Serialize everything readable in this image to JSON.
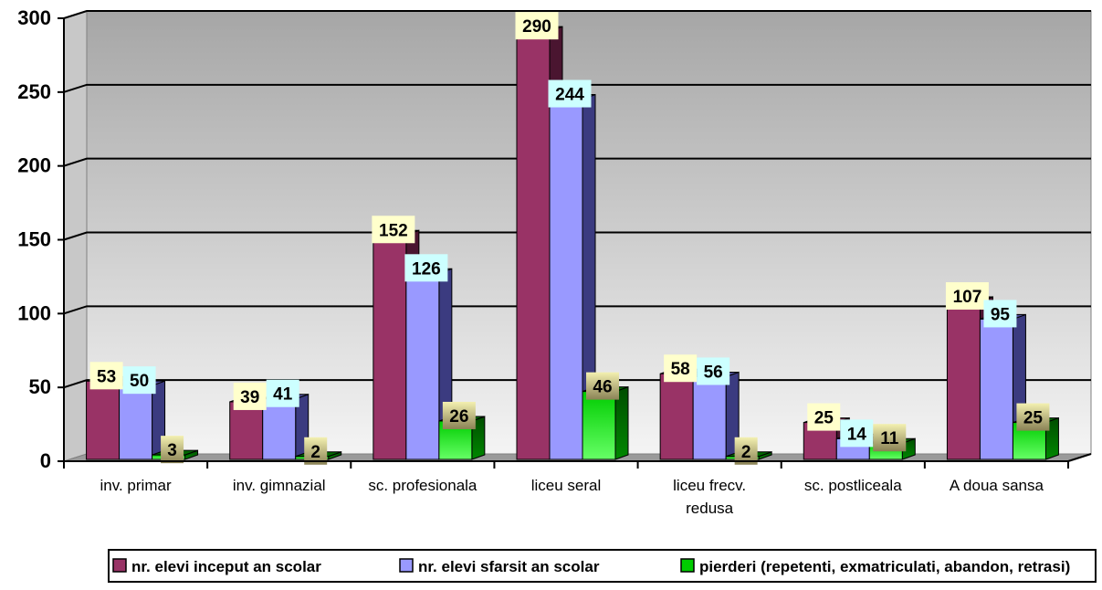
{
  "chart_data": {
    "type": "bar",
    "categories": [
      "inv. primar",
      "inv. gimnazial",
      "sc. profesionala",
      "liceu seral",
      "liceu frecv. redusa",
      "sc. postliceala",
      "A doua sansa"
    ],
    "category_lines": [
      [
        "inv. primar"
      ],
      [
        "inv. gimnazial"
      ],
      [
        "sc. profesionala"
      ],
      [
        "liceu seral"
      ],
      [
        "liceu frecv.",
        "redusa"
      ],
      [
        "sc. postliceala"
      ],
      [
        "A doua sansa"
      ]
    ],
    "series": [
      {
        "name": "nr. elevi inceput an scolar",
        "values": [
          53,
          39,
          152,
          290,
          58,
          25,
          107
        ],
        "color": "#993366",
        "label_bg": "#ffffcc"
      },
      {
        "name": "nr. elevi sfarsit an scolar",
        "values": [
          50,
          41,
          126,
          244,
          56,
          14,
          95
        ],
        "color": "#9999ff",
        "label_bg": "#ccffff"
      },
      {
        "name": "pierderi (repetenti, exmatriculati, abandon, retrasi)",
        "values": [
          3,
          2,
          26,
          46,
          2,
          11,
          25
        ],
        "color": "#00aa00",
        "label_bg": "#eded9e"
      }
    ],
    "y_ticks": [
      0,
      50,
      100,
      150,
      200,
      250,
      300
    ],
    "ylim": [
      0,
      300
    ],
    "grid": true,
    "legend_position": "bottom",
    "title": "",
    "xlabel": "",
    "ylabel": ""
  }
}
